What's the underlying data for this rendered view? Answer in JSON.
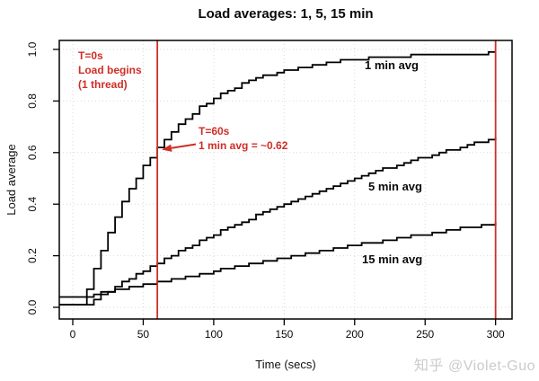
{
  "title": "Load averages: 1, 5, 15 min",
  "watermark": "知乎 @Violet-Guo",
  "colors": {
    "accent_red": "#cf2e27",
    "curve_black": "#000000",
    "grid_gray": "#d9d9d9",
    "watermark_gray": "#c9cbce"
  },
  "annotations": {
    "start": {
      "line1": "T=0s",
      "line2": "Load begins",
      "line3": "(1 thread)"
    },
    "t60": {
      "line1": "T=60s",
      "line2": "1 min avg = ~0.62"
    }
  },
  "chart_data": {
    "type": "line",
    "style": "step",
    "title": "Load averages: 1, 5, 15 min",
    "xlabel": "Time (secs)",
    "ylabel": "Load average",
    "xlim": [
      -12,
      312
    ],
    "ylim": [
      0.0,
      1.0
    ],
    "x_ticks": [
      0,
      50,
      100,
      150,
      200,
      250,
      300
    ],
    "y_ticks": [
      0.0,
      0.2,
      0.4,
      0.6,
      0.8,
      1.0
    ],
    "grid": "dotted both axes",
    "marker_lines_x": [
      60,
      300
    ],
    "t_start": -10,
    "t_step": 5,
    "series": [
      {
        "name": "1 min avg",
        "values": [
          0.01,
          0.01,
          0.01,
          0.01,
          0.07,
          0.15,
          0.22,
          0.29,
          0.35,
          0.41,
          0.46,
          0.5,
          0.55,
          0.58,
          0.62,
          0.65,
          0.68,
          0.71,
          0.73,
          0.75,
          0.78,
          0.79,
          0.81,
          0.83,
          0.84,
          0.85,
          0.87,
          0.88,
          0.89,
          0.9,
          0.9,
          0.91,
          0.92,
          0.92,
          0.93,
          0.93,
          0.94,
          0.94,
          0.95,
          0.95,
          0.96,
          0.96,
          0.96,
          0.96,
          0.97,
          0.97,
          0.97,
          0.97,
          0.97,
          0.97,
          0.98,
          0.98,
          0.98,
          0.98,
          0.98,
          0.98,
          0.98,
          0.98,
          0.98,
          0.98,
          0.98,
          0.99,
          0.99
        ]
      },
      {
        "name": "5 min avg",
        "values": [
          0.01,
          0.01,
          0.01,
          0.01,
          0.01,
          0.03,
          0.05,
          0.06,
          0.08,
          0.1,
          0.11,
          0.13,
          0.14,
          0.16,
          0.17,
          0.19,
          0.2,
          0.22,
          0.23,
          0.24,
          0.26,
          0.27,
          0.28,
          0.3,
          0.31,
          0.32,
          0.33,
          0.34,
          0.36,
          0.37,
          0.38,
          0.39,
          0.4,
          0.41,
          0.42,
          0.43,
          0.44,
          0.45,
          0.46,
          0.47,
          0.48,
          0.49,
          0.5,
          0.51,
          0.52,
          0.53,
          0.54,
          0.54,
          0.55,
          0.56,
          0.57,
          0.58,
          0.58,
          0.59,
          0.6,
          0.61,
          0.61,
          0.62,
          0.63,
          0.64,
          0.64,
          0.65,
          0.66
        ]
      },
      {
        "name": "15 min avg",
        "values": [
          0.04,
          0.04,
          0.04,
          0.04,
          0.04,
          0.05,
          0.06,
          0.06,
          0.07,
          0.07,
          0.08,
          0.08,
          0.09,
          0.09,
          0.1,
          0.1,
          0.11,
          0.11,
          0.12,
          0.12,
          0.13,
          0.13,
          0.14,
          0.15,
          0.15,
          0.16,
          0.16,
          0.17,
          0.17,
          0.18,
          0.18,
          0.19,
          0.19,
          0.2,
          0.2,
          0.21,
          0.21,
          0.22,
          0.22,
          0.23,
          0.23,
          0.24,
          0.24,
          0.25,
          0.25,
          0.25,
          0.26,
          0.26,
          0.27,
          0.27,
          0.28,
          0.28,
          0.28,
          0.29,
          0.29,
          0.3,
          0.3,
          0.31,
          0.31,
          0.31,
          0.32,
          0.32,
          0.33
        ]
      }
    ]
  }
}
